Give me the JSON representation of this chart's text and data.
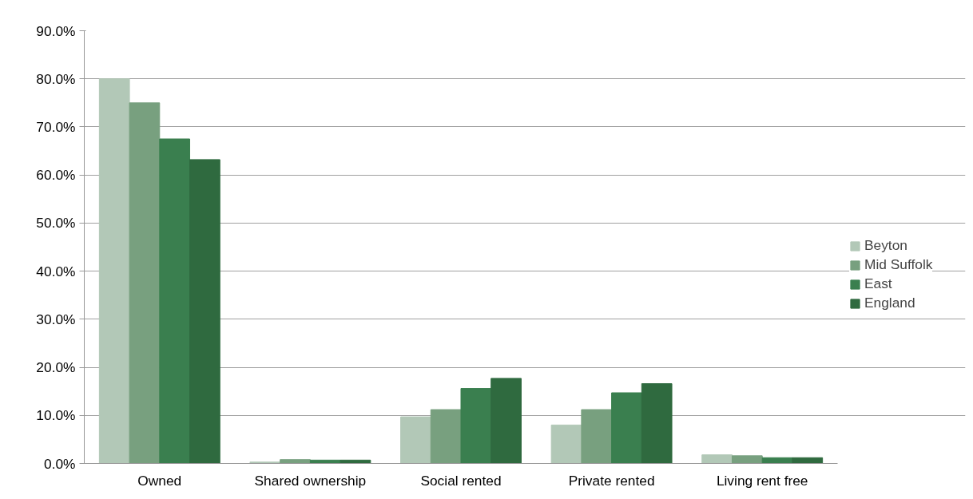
{
  "chart_data": {
    "type": "bar",
    "categories": [
      "Owned",
      "Shared ownership",
      "Social rented",
      "Private rented",
      "Living rent free"
    ],
    "series": [
      {
        "name": "Beyton",
        "color": "#b2c8b7",
        "values": [
          80.0,
          0.3,
          9.7,
          8.0,
          1.8
        ]
      },
      {
        "name": "Mid Suffolk",
        "color": "#78a07f",
        "values": [
          75.0,
          0.8,
          11.2,
          11.2,
          1.6
        ]
      },
      {
        "name": "East",
        "color": "#3a7f4f",
        "values": [
          67.5,
          0.7,
          15.6,
          14.7,
          1.2
        ]
      },
      {
        "name": "England",
        "color": "#2f6a3f",
        "values": [
          63.2,
          0.7,
          17.7,
          16.6,
          1.2
        ]
      }
    ],
    "ylim": [
      0,
      90
    ],
    "yticks": [
      {
        "value": 0,
        "label": "0.0%"
      },
      {
        "value": 10,
        "label": "10.0%"
      },
      {
        "value": 20,
        "label": "20.0%"
      },
      {
        "value": 30,
        "label": "30.0%"
      },
      {
        "value": 40,
        "label": "40.0%"
      },
      {
        "value": 50,
        "label": "50.0%"
      },
      {
        "value": 60,
        "label": "60.0%"
      },
      {
        "value": 70,
        "label": "70.0%"
      },
      {
        "value": 80,
        "label": "80.0%"
      },
      {
        "value": 90,
        "label": "90.0%"
      }
    ],
    "grid": "y",
    "legend": "right"
  }
}
